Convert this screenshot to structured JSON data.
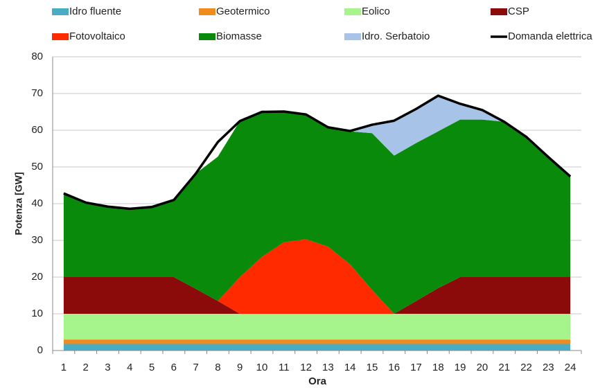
{
  "chart_data": {
    "type": "area",
    "stacked": true,
    "xlabel": "Ora",
    "ylabel": "Potenza [GW]",
    "categories": [
      "1",
      "2",
      "3",
      "4",
      "5",
      "6",
      "7",
      "8",
      "9",
      "10",
      "11",
      "12",
      "13",
      "14",
      "15",
      "16",
      "17",
      "18",
      "19",
      "20",
      "21",
      "22",
      "23",
      "24"
    ],
    "ylim": [
      0,
      80
    ],
    "yticks": [
      0,
      10,
      20,
      30,
      40,
      50,
      60,
      70,
      80
    ],
    "grid": true,
    "series": [
      {
        "name": "Idro fluente",
        "color": "#4bacc6",
        "values": [
          1.8,
          1.8,
          1.8,
          1.8,
          1.8,
          1.8,
          1.8,
          1.8,
          1.8,
          1.8,
          1.8,
          1.8,
          1.8,
          1.8,
          1.8,
          1.8,
          1.8,
          1.8,
          1.8,
          1.8,
          1.8,
          1.8,
          1.8,
          1.8
        ]
      },
      {
        "name": "Fotovoltaico",
        "color": "#ff2a00",
        "values": null
      },
      {
        "name": "Geotermico",
        "color": "#f08c1e",
        "values": [
          1.2,
          1.2,
          1.2,
          1.2,
          1.2,
          1.2,
          1.2,
          1.2,
          1.2,
          1.2,
          1.2,
          1.2,
          1.2,
          1.2,
          1.2,
          1.2,
          1.2,
          1.2,
          1.2,
          1.2,
          1.2,
          1.2,
          1.2,
          1.2
        ]
      },
      {
        "name": "Biomasse",
        "color": "#0a8a0a",
        "values": null
      },
      {
        "name": "Eolico",
        "color": "#a6f58c",
        "values": [
          7,
          7,
          7,
          7,
          7,
          7,
          7,
          7,
          7,
          7,
          7,
          7,
          7,
          7,
          7,
          7,
          7,
          7,
          7,
          7,
          7,
          7,
          7,
          7
        ]
      },
      {
        "name": "Idro. Serbatoio",
        "color": "#a7c4e8",
        "values": null
      },
      {
        "name": "CSP",
        "color": "#8b0a0a",
        "values": [
          10,
          10,
          10,
          10,
          10,
          10,
          6.8,
          3.5,
          0,
          0,
          0,
          0,
          0,
          0,
          0,
          0,
          3.5,
          7,
          10,
          10,
          10,
          10,
          10,
          10
        ]
      },
      {
        "name": "Domanda elettrica",
        "color": "#000000",
        "kind": "line",
        "values": [
          42.8,
          40.3,
          39.2,
          38.6,
          39.1,
          41,
          48.2,
          56.8,
          62.5,
          65,
          65.1,
          64.3,
          60.8,
          59.8,
          61.5,
          62.6,
          65.8,
          69.4,
          67.2,
          65.5,
          62.3,
          58.2,
          52.7,
          47.4
        ]
      }
    ],
    "stack_order": [
      0,
      2,
      4,
      6,
      1,
      3,
      5
    ],
    "extra": {
      "1": [
        0,
        0,
        0,
        0,
        0,
        0,
        0,
        0,
        10,
        15.5,
        19.5,
        20.3,
        18.3,
        13.5,
        6.5,
        0,
        0,
        0,
        0,
        0,
        0,
        0,
        0,
        0
      ],
      "3": [
        22.8,
        20.3,
        19.2,
        18.6,
        19.1,
        21,
        31.4,
        39.3,
        42.5,
        39.5,
        35.6,
        34,
        32.5,
        36.2,
        42.7,
        43.1,
        43,
        42.7,
        42.9,
        42.9,
        42.3,
        38.2,
        32.7,
        27.4
      ],
      "5": [
        0,
        0,
        0,
        0,
        0,
        0,
        0,
        0,
        0,
        0,
        0,
        0,
        0,
        0.1,
        2.3,
        9.5,
        9.3,
        9.7,
        4.3,
        2.6,
        0,
        0,
        0,
        0
      ]
    }
  }
}
